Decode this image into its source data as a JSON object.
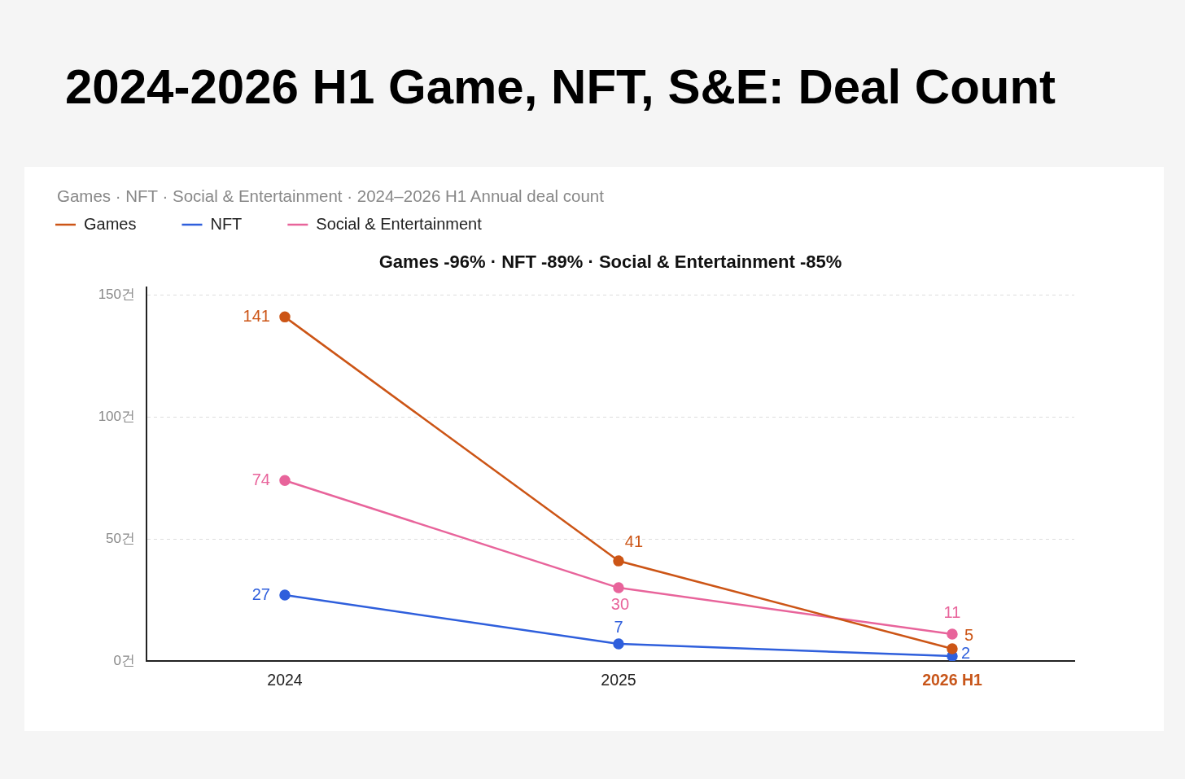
{
  "chart_data": {
    "type": "line",
    "title": "2024-2026 H1 Game, NFT, S&E: Deal Count",
    "subtitle": "Games · NFT · Social & Entertainment · 2024–2026 H1 Annual deal count",
    "annotations": [
      "Games -96% · NFT -89% · Social & Entertainment -85%"
    ],
    "categories": [
      "2024",
      "2025",
      "2026 H1"
    ],
    "series": [
      {
        "name": "Games",
        "color": "#cc5516",
        "values": [
          141,
          41,
          5
        ]
      },
      {
        "name": "NFT",
        "color": "#2f5fdc",
        "values": [
          27,
          7,
          2
        ]
      },
      {
        "name": "Social & Entertainment",
        "color": "#e8649b",
        "values": [
          74,
          30,
          11
        ]
      }
    ],
    "ylim": [
      0,
      153
    ],
    "yticks": [
      {
        "value": 0,
        "label": "0건"
      },
      {
        "value": 50,
        "label": "50건"
      },
      {
        "value": 100,
        "label": "100건"
      },
      {
        "value": 150,
        "label": "150건"
      }
    ],
    "grid": "y",
    "legend": "top left",
    "marker": "circle",
    "line_style": "solid",
    "data_labels": true
  }
}
